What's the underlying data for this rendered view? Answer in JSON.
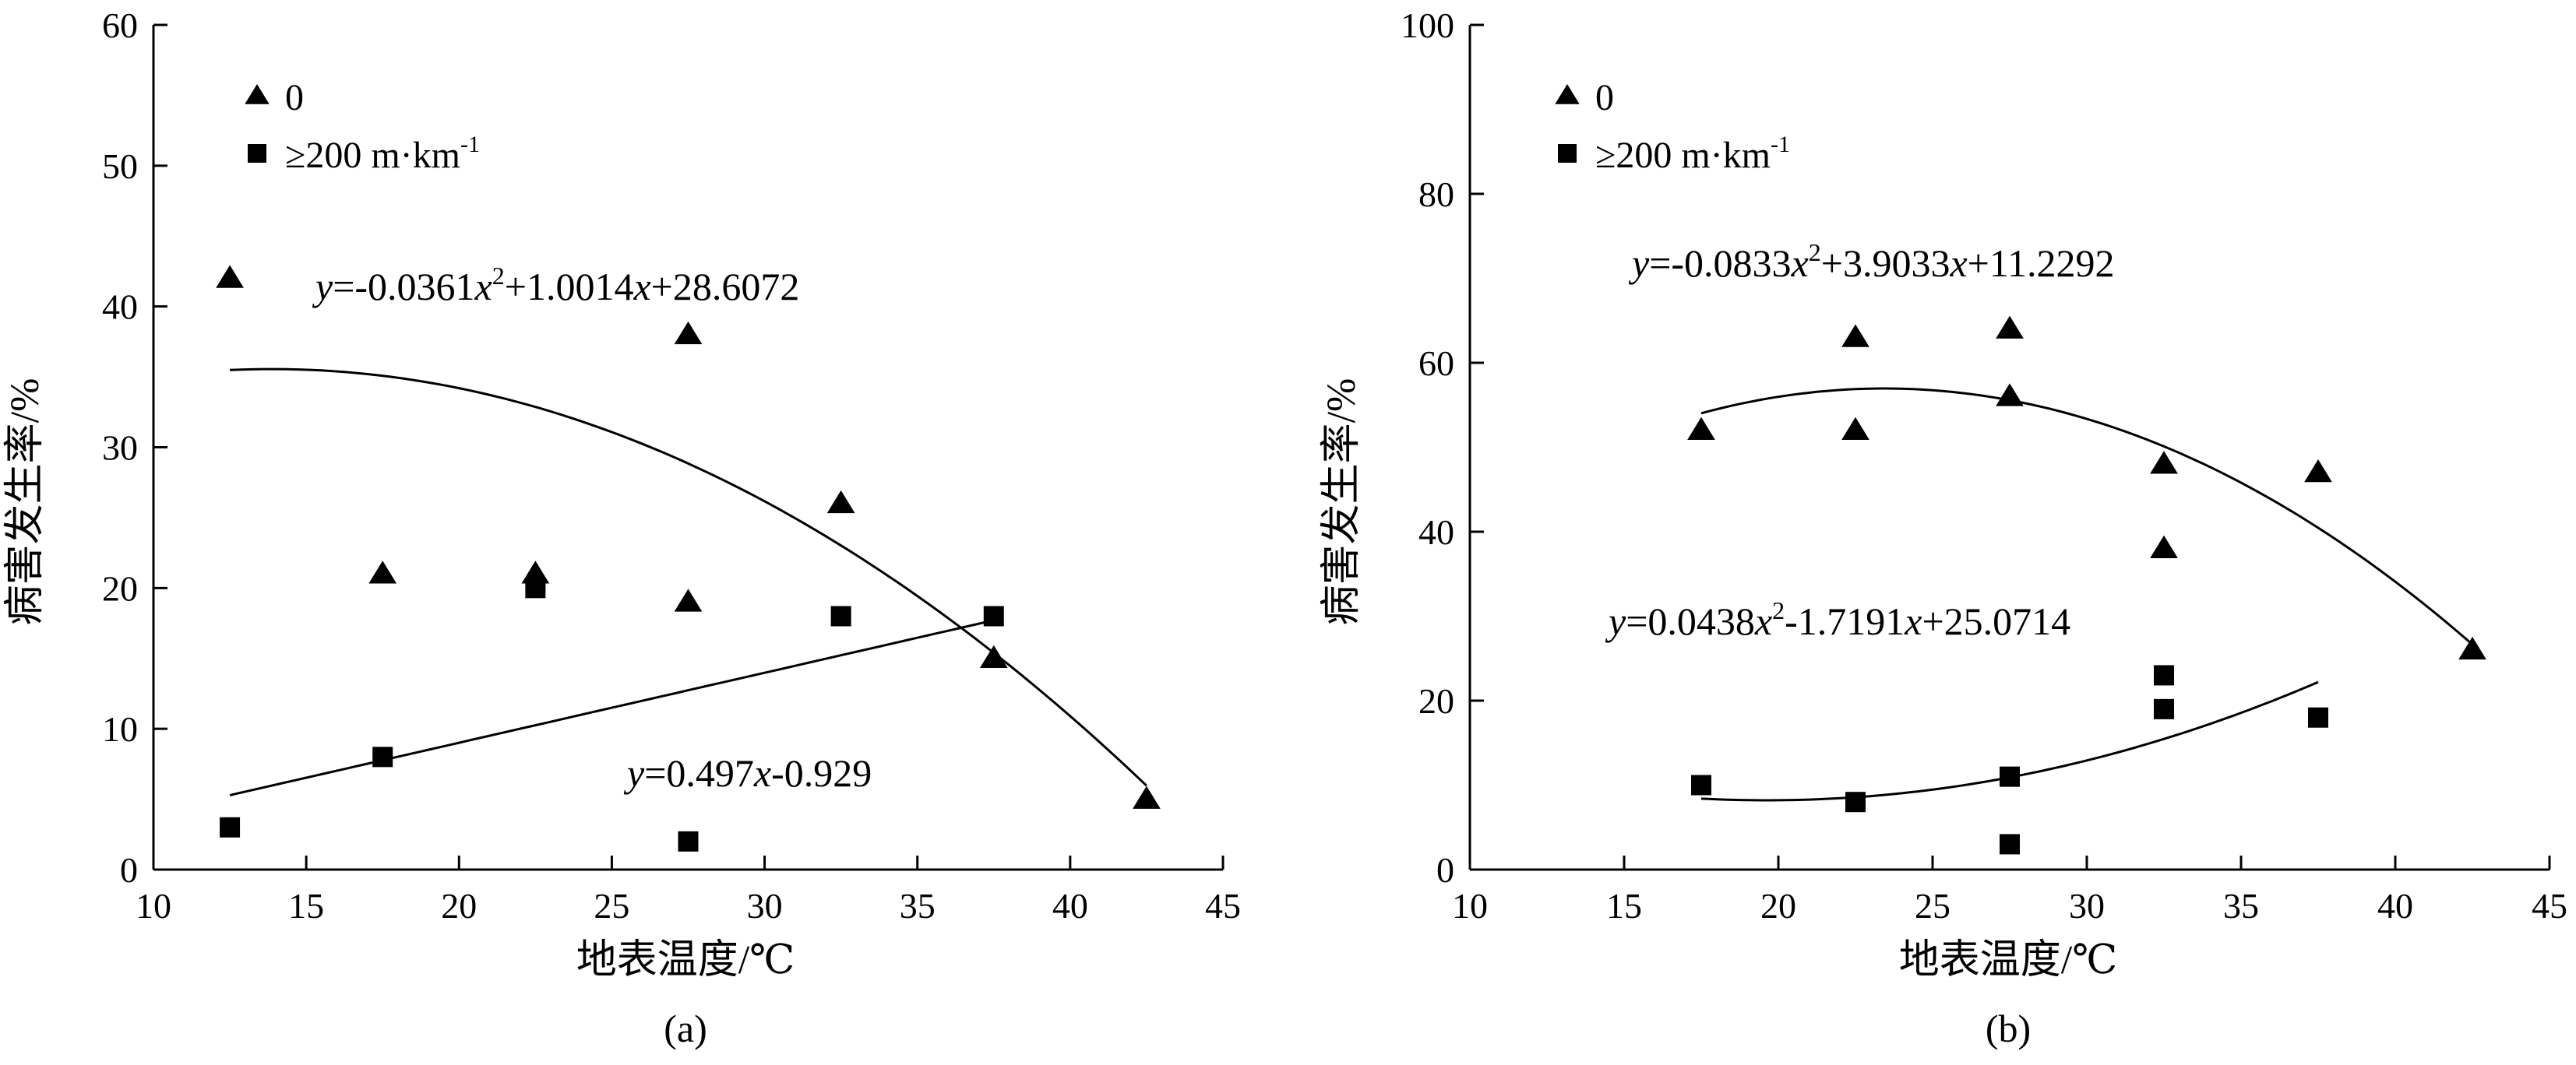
{
  "chart_data": [
    {
      "type": "scatter",
      "panel_label": "(a)",
      "xlabel": "地表温度/℃",
      "ylabel": "病害发生率/%",
      "xlim": [
        10,
        45
      ],
      "ylim": [
        0,
        60
      ],
      "xticks": [
        10,
        15,
        20,
        25,
        30,
        35,
        40,
        45
      ],
      "yticks": [
        0,
        10,
        20,
        30,
        40,
        50,
        60
      ],
      "legend": {
        "position": "top-left",
        "entries": [
          "0",
          "≥200 m·km",
          "-1"
        ]
      },
      "series": [
        {
          "name": "0",
          "marker": "triangle",
          "points": [
            [
              12.5,
              42
            ],
            [
              17.5,
              21
            ],
            [
              22.5,
              21
            ],
            [
              27.5,
              38
            ],
            [
              27.5,
              19
            ],
            [
              32.5,
              26
            ],
            [
              37.5,
              15
            ],
            [
              42.5,
              5
            ]
          ],
          "fit": {
            "kind": "poly2",
            "a": -0.0361,
            "b": 1.0014,
            "c": 28.6072,
            "xrange": [
              12.5,
              42.5
            ]
          }
        },
        {
          "name": "≥200 m·km-1",
          "marker": "square",
          "points": [
            [
              12.5,
              3
            ],
            [
              17.5,
              8
            ],
            [
              22.5,
              20
            ],
            [
              27.5,
              2
            ],
            [
              32.5,
              18
            ],
            [
              37.5,
              18
            ]
          ],
          "fit": {
            "kind": "linear",
            "a": 0.497,
            "b": -0.929,
            "xrange": [
              12.5,
              37.5
            ]
          }
        }
      ],
      "equations": [
        {
          "parts": [
            "y",
            "=-0.0361",
            "x",
            "2",
            "+1.0014",
            "x",
            "+28.6072"
          ]
        },
        {
          "parts": [
            "y",
            "=0.497",
            "x",
            "-0.929"
          ]
        }
      ]
    },
    {
      "type": "scatter",
      "panel_label": "(b)",
      "xlabel": "地表温度/℃",
      "ylabel": "病害发生率/%",
      "xlim": [
        10,
        45
      ],
      "ylim": [
        0,
        100
      ],
      "xticks": [
        10,
        15,
        20,
        25,
        30,
        35,
        40,
        45
      ],
      "yticks": [
        0,
        20,
        40,
        60,
        80,
        100
      ],
      "legend": {
        "position": "top-left",
        "entries": [
          "0",
          "≥200 m·km",
          "-1"
        ]
      },
      "series": [
        {
          "name": "0",
          "marker": "triangle",
          "points": [
            [
              17.5,
              52
            ],
            [
              22.5,
              63
            ],
            [
              22.5,
              52
            ],
            [
              27.5,
              64
            ],
            [
              27.5,
              56
            ],
            [
              32.5,
              48
            ],
            [
              32.5,
              38
            ],
            [
              37.5,
              47
            ],
            [
              42.5,
              26
            ]
          ],
          "fit": {
            "kind": "poly2",
            "a": -0.0833,
            "b": 3.9033,
            "c": 11.2292,
            "xrange": [
              17.5,
              42.5
            ]
          }
        },
        {
          "name": "≥200 m·km-1",
          "marker": "square",
          "points": [
            [
              17.5,
              10
            ],
            [
              22.5,
              8
            ],
            [
              27.5,
              11
            ],
            [
              27.5,
              3
            ],
            [
              32.5,
              23
            ],
            [
              32.5,
              19
            ],
            [
              37.5,
              18
            ]
          ],
          "fit": {
            "kind": "poly2",
            "a": 0.0438,
            "b": -1.7191,
            "c": 25.0714,
            "xrange": [
              17.5,
              37.5
            ]
          }
        }
      ],
      "equations": [
        {
          "parts": [
            "y",
            "=-0.0833",
            "x",
            "2",
            "+3.9033",
            "x",
            "+11.2292"
          ]
        },
        {
          "parts": [
            "y",
            "=0.0438",
            "x",
            "2",
            "-1.7191",
            "x",
            "+25.0714"
          ]
        }
      ]
    }
  ]
}
